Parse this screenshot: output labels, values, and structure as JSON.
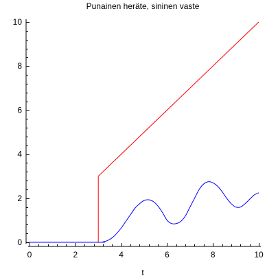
{
  "chart_data": {
    "type": "line",
    "title": "Punainen heräte, sininen vaste",
    "xlabel": "t",
    "ylabel": "",
    "xlim": [
      0,
      10
    ],
    "ylim": [
      0,
      10
    ],
    "xticks": [
      0,
      2,
      4,
      6,
      8,
      10
    ],
    "yticks": [
      0,
      2,
      4,
      6,
      8,
      10
    ],
    "xtick_labels": [
      "0",
      "2",
      "4",
      "6",
      "8",
      "10"
    ],
    "ytick_labels": [
      "0",
      "2",
      "4",
      "6",
      "8",
      "10"
    ],
    "grid": false,
    "series": [
      {
        "color": "#ff0000",
        "x": [
          0,
          3,
          3,
          10
        ],
        "y": [
          0,
          0,
          3,
          10
        ]
      },
      {
        "color": "#0000ff",
        "x": [
          0,
          3.0,
          3.2,
          3.4,
          3.6,
          3.8,
          4.0,
          4.2,
          4.4,
          4.6,
          4.8,
          5.0,
          5.2,
          5.4,
          5.6,
          5.8,
          6.0,
          6.2,
          6.4,
          6.6,
          6.8,
          7.0,
          7.2,
          7.4,
          7.6,
          7.8,
          8.0,
          8.2,
          8.4,
          8.6,
          8.8,
          9.0,
          9.2,
          9.4,
          9.6,
          9.8,
          10.0
        ],
        "y": [
          0,
          0,
          0.02,
          0.08,
          0.2,
          0.4,
          0.65,
          0.95,
          1.25,
          1.55,
          1.75,
          1.9,
          1.93,
          1.85,
          1.65,
          1.35,
          1.0,
          0.85,
          0.85,
          0.95,
          1.2,
          1.6,
          2.0,
          2.4,
          2.65,
          2.75,
          2.7,
          2.55,
          2.3,
          2.0,
          1.75,
          1.6,
          1.6,
          1.75,
          1.95,
          2.15,
          2.25
        ]
      }
    ]
  }
}
